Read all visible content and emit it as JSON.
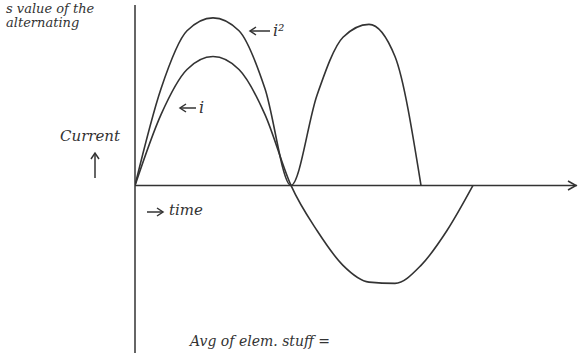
{
  "chart_data": {
    "type": "line",
    "title": "s value of the alternating",
    "x_label": "time",
    "y_label": "Current",
    "annotations": [
      {
        "text": "Avg of elem. stuff ="
      }
    ],
    "x": [
      0,
      1,
      2,
      3,
      4,
      5,
      6,
      7,
      8,
      9,
      10,
      11,
      12,
      13
    ],
    "series": [
      {
        "name": "i²",
        "color": "#333333",
        "values": [
          0,
          0.75,
          1.2,
          1.3,
          1.2,
          0.75,
          0,
          0.7,
          1.15,
          1.25,
          1.0,
          0,
          null,
          null
        ]
      },
      {
        "name": "i",
        "color": "#333333",
        "values": [
          0,
          0.55,
          0.9,
          1.0,
          0.9,
          0.55,
          0,
          -0.35,
          -0.62,
          -0.75,
          -0.76,
          -0.62,
          -0.35,
          0
        ]
      }
    ],
    "xlim": [
      0,
      17
    ],
    "ylim": [
      -1.3,
      1.4
    ],
    "tick_labels": false,
    "grid": false
  }
}
